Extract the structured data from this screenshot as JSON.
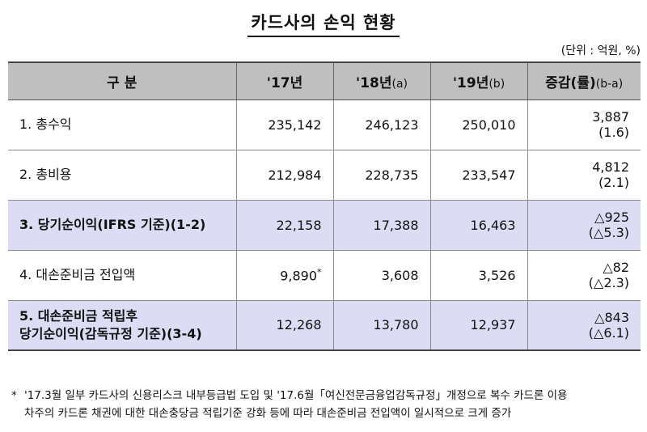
{
  "title": "카드사의 손익 현황",
  "unit": "(단위 : 억원, %)",
  "headers": {
    "category": "구 분",
    "y17": "'17년",
    "y18": "'18년",
    "y18_sub": "(a)",
    "y19": "'19년",
    "y19_sub": "(b)",
    "change": "증감(률)",
    "change_sub": "(b-a)"
  },
  "rows": [
    {
      "label": "1. 총수익",
      "y17": "235,142",
      "y18": "246,123",
      "y19": "250,010",
      "diff": "3,887",
      "rate": "(1.6)",
      "highlight": false
    },
    {
      "label": "2. 총비용",
      "y17": "212,984",
      "y18": "228,735",
      "y19": "233,547",
      "diff": "4,812",
      "rate": "(2.1)",
      "highlight": false
    },
    {
      "label": "3. 당기순이익(IFRS 기준)(1-2)",
      "y17": "22,158",
      "y18": "17,388",
      "y19": "16,463",
      "diff": "△925",
      "rate": "(△5.3)",
      "highlight": true
    },
    {
      "label": "4. 대손준비금 전입액",
      "y17": "9,890",
      "y17_mark": "*",
      "y18": "3,608",
      "y19": "3,526",
      "diff": "△82",
      "rate": "(△2.3)",
      "highlight": false
    },
    {
      "label_line1": "5. 대손준비금 적립후",
      "label_line2": "당기순이익(감독규정 기준)(3-4)",
      "y17": "12,268",
      "y18": "13,780",
      "y19": "12,937",
      "diff": "△843",
      "rate": "(△6.1)",
      "highlight": true
    }
  ],
  "footnote": {
    "mark": "*",
    "line1": "'17.3월 일부 카드사의 신용리스크 내부등급법 도입 및 '17.6월「여신전문금융업감독규정」개정으로 복수 카드론 이용",
    "line2": "차주의 카드론 채권에 대한 대손충당금 적립기준 강화 등에 따라 대손준비금 전입액이 일시적으로 크게 증가"
  }
}
